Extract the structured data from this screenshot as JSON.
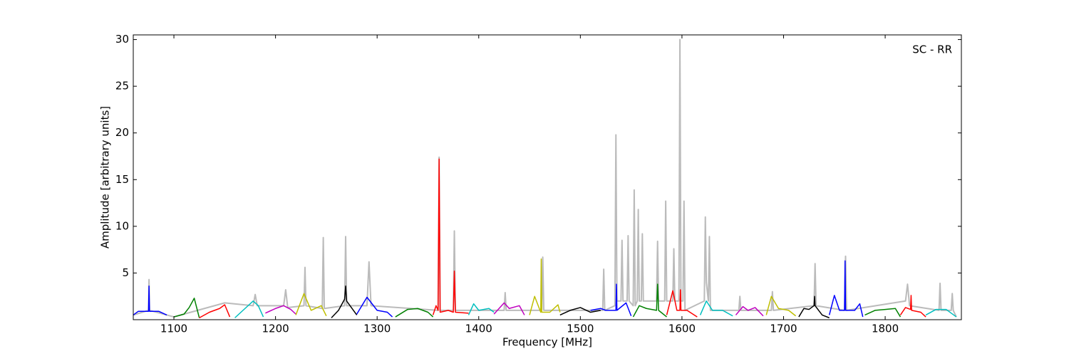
{
  "chart_data": {
    "type": "line",
    "annotation": "SC - RR",
    "xlabel": "Frequency [MHz]",
    "ylabel": "Amplitude [arbitrary units]",
    "xlim": [
      1060,
      1875
    ],
    "ylim": [
      0,
      30.5
    ],
    "xticks": [
      1100,
      1200,
      1300,
      1400,
      1500,
      1600,
      1700,
      1800
    ],
    "yticks": [
      5,
      10,
      15,
      20,
      25,
      30
    ],
    "grid": false,
    "series": [
      {
        "color": "#bbbbbb",
        "x": [
          1060,
          1075,
          1075.5,
          1076,
          1100,
          1150,
          1178,
          1180,
          1182,
          1208,
          1210,
          1212,
          1228,
          1229,
          1230,
          1246,
          1247,
          1248,
          1268,
          1269,
          1270,
          1290,
          1292,
          1294,
          1360,
          1361,
          1362,
          1375,
          1376,
          1377,
          1425,
          1426,
          1427,
          1462,
          1463,
          1464,
          1522,
          1523,
          1524,
          1534,
          1535,
          1536,
          1540,
          1541,
          1542,
          1546,
          1547,
          1548,
          1552,
          1553,
          1554,
          1556,
          1557,
          1558,
          1560,
          1561,
          1562,
          1575,
          1576,
          1577,
          1583,
          1584,
          1585,
          1591,
          1592,
          1593,
          1597,
          1598,
          1599,
          1601,
          1602,
          1603,
          1622,
          1623,
          1624,
          1626,
          1627,
          1628,
          1656,
          1657,
          1658,
          1688,
          1689,
          1690,
          1730,
          1731,
          1732,
          1760,
          1761,
          1762,
          1820,
          1822,
          1824,
          1853,
          1854,
          1855,
          1865,
          1866,
          1867,
          1870
        ],
        "values": [
          0.5,
          1,
          4.3,
          1,
          0.3,
          1.8,
          1.5,
          2.7,
          1.5,
          1.5,
          3.2,
          1.3,
          1.5,
          5.6,
          1.5,
          1.2,
          8.8,
          1.2,
          1.5,
          8.9,
          1.5,
          1.5,
          6.2,
          1.5,
          1,
          17.4,
          1,
          1,
          9.5,
          1,
          1,
          2.9,
          1,
          1,
          6.7,
          1,
          1,
          5.4,
          1,
          1.5,
          19.8,
          2,
          2,
          8.5,
          2,
          2,
          9,
          2,
          1.5,
          13.9,
          1.5,
          2,
          11.8,
          2,
          2,
          9.2,
          2,
          2,
          8.4,
          2,
          2,
          12.7,
          2,
          2,
          7.6,
          2,
          2,
          30,
          2,
          2,
          12.7,
          1,
          2,
          11,
          4,
          2,
          8.9,
          1,
          1,
          2.5,
          1,
          1,
          3,
          1,
          1.5,
          6,
          1.5,
          1,
          6.8,
          1,
          2,
          3.8,
          1.5,
          1,
          3.9,
          1,
          1,
          2.8,
          1,
          0.3
        ]
      },
      {
        "color": "#0000ff",
        "x": [
          1060,
          1065,
          1075,
          1075.5,
          1076,
          1085,
          1093
        ],
        "values": [
          0.5,
          0.9,
          0.9,
          3.6,
          0.9,
          0.9,
          0.5
        ]
      },
      {
        "color": "#008000",
        "x": [
          1100,
          1110,
          1115,
          1120,
          1125
        ],
        "values": [
          0.3,
          0.6,
          1.3,
          2.3,
          0.2
        ]
      },
      {
        "color": "#ff0000",
        "x": [
          1125,
          1135,
          1145,
          1150,
          1155
        ],
        "values": [
          0.2,
          0.8,
          1.2,
          1.6,
          0.3
        ]
      },
      {
        "color": "#00bfbf",
        "x": [
          1160,
          1170,
          1178,
          1183,
          1188
        ],
        "values": [
          0.2,
          1.2,
          2,
          1.5,
          0.3
        ]
      },
      {
        "color": "#bf00bf",
        "x": [
          1190,
          1200,
          1208,
          1215,
          1220
        ],
        "values": [
          0.7,
          1.2,
          1.5,
          1.1,
          0.6
        ]
      },
      {
        "color": "#bfbf00",
        "x": [
          1220,
          1228,
          1235,
          1245,
          1250
        ],
        "values": [
          0.5,
          2.8,
          1,
          1.5,
          0.4
        ]
      },
      {
        "color": "#000000",
        "x": [
          1255,
          1262,
          1268,
          1269,
          1270,
          1280
        ],
        "values": [
          0.2,
          1,
          2.2,
          3.6,
          2,
          0.5
        ]
      },
      {
        "color": "#0000ff",
        "x": [
          1280,
          1290,
          1300,
          1310,
          1315
        ],
        "values": [
          0.6,
          2.4,
          1,
          0.8,
          0.3
        ]
      },
      {
        "color": "#008000",
        "x": [
          1318,
          1330,
          1340,
          1350,
          1355
        ],
        "values": [
          0.3,
          1.1,
          1.2,
          0.8,
          0.3
        ]
      },
      {
        "color": "#ff0000",
        "x": [
          1355,
          1358,
          1360,
          1361,
          1362,
          1370,
          1375,
          1376,
          1377,
          1390
        ],
        "values": [
          0.5,
          1.5,
          1,
          17.2,
          0.8,
          1,
          0.8,
          5.2,
          0.8,
          0.7
        ]
      },
      {
        "color": "#00bfbf",
        "x": [
          1390,
          1395,
          1400,
          1410,
          1415
        ],
        "values": [
          0.5,
          1.7,
          1,
          1.2,
          0.8
        ]
      },
      {
        "color": "#bf00bf",
        "x": [
          1415,
          1425,
          1430,
          1440,
          1445
        ],
        "values": [
          0.6,
          1.8,
          1.2,
          1.5,
          0.5
        ]
      },
      {
        "color": "#bfbf00",
        "x": [
          1450,
          1455,
          1461,
          1461.5,
          1462,
          1470,
          1478,
          1480
        ],
        "values": [
          0.5,
          2.5,
          0.8,
          6.5,
          0.8,
          0.8,
          1.6,
          0.8
        ]
      },
      {
        "color": "#000000",
        "x": [
          1480,
          1490,
          1500,
          1510,
          1520
        ],
        "values": [
          0.5,
          1,
          1.3,
          0.8,
          1
        ]
      },
      {
        "color": "#0000ff",
        "x": [
          1510,
          1520,
          1525,
          1530,
          1535,
          1535.5,
          1536,
          1545,
          1550
        ],
        "values": [
          1,
          1.2,
          1,
          1,
          1,
          3.8,
          1,
          1.8,
          0.4
        ]
      },
      {
        "color": "#008000",
        "x": [
          1552,
          1558,
          1565,
          1575,
          1576,
          1577,
          1585
        ],
        "values": [
          0.3,
          1.5,
          1.2,
          1,
          3.8,
          1,
          0.3
        ]
      },
      {
        "color": "#ff0000",
        "x": [
          1585,
          1591,
          1595,
          1598,
          1598.5,
          1599,
          1605,
          1615
        ],
        "values": [
          0.5,
          3.1,
          1,
          1,
          3.2,
          1,
          1,
          0.3
        ]
      },
      {
        "color": "#00bfbf",
        "x": [
          1618,
          1622,
          1624,
          1630,
          1640,
          1650
        ],
        "values": [
          0.5,
          1.5,
          2,
          1,
          1,
          0.4
        ]
      },
      {
        "color": "#bf00bf",
        "x": [
          1653,
          1660,
          1665,
          1672,
          1680
        ],
        "values": [
          0.5,
          1.4,
          1,
          1.3,
          0.4
        ]
      },
      {
        "color": "#bfbf00",
        "x": [
          1683,
          1688,
          1695,
          1705,
          1712
        ],
        "values": [
          0.5,
          2.5,
          1.2,
          1,
          0.4
        ]
      },
      {
        "color": "#000000",
        "x": [
          1715,
          1720,
          1725,
          1730,
          1730.5,
          1731,
          1738,
          1745
        ],
        "values": [
          0.3,
          1.2,
          1.1,
          1.5,
          2.5,
          1.5,
          0.5,
          0.2
        ]
      },
      {
        "color": "#0000ff",
        "x": [
          1745,
          1750,
          1755,
          1760,
          1760.5,
          1761,
          1770,
          1775,
          1778
        ],
        "values": [
          0.5,
          2.6,
          1,
          1,
          6.3,
          1,
          1,
          1.7,
          0.3
        ]
      },
      {
        "color": "#008000",
        "x": [
          1780,
          1790,
          1800,
          1810,
          1815
        ],
        "values": [
          0.5,
          1,
          1.1,
          1.2,
          0.3
        ]
      },
      {
        "color": "#ff0000",
        "x": [
          1815,
          1820,
          1825,
          1825.5,
          1826,
          1835,
          1840
        ],
        "values": [
          0.5,
          1.3,
          1.1,
          2.6,
          1,
          0.8,
          0.3
        ]
      },
      {
        "color": "#00bfbf",
        "x": [
          1840,
          1850,
          1860,
          1870
        ],
        "values": [
          0.5,
          1.1,
          1.1,
          0.3
        ]
      }
    ]
  }
}
